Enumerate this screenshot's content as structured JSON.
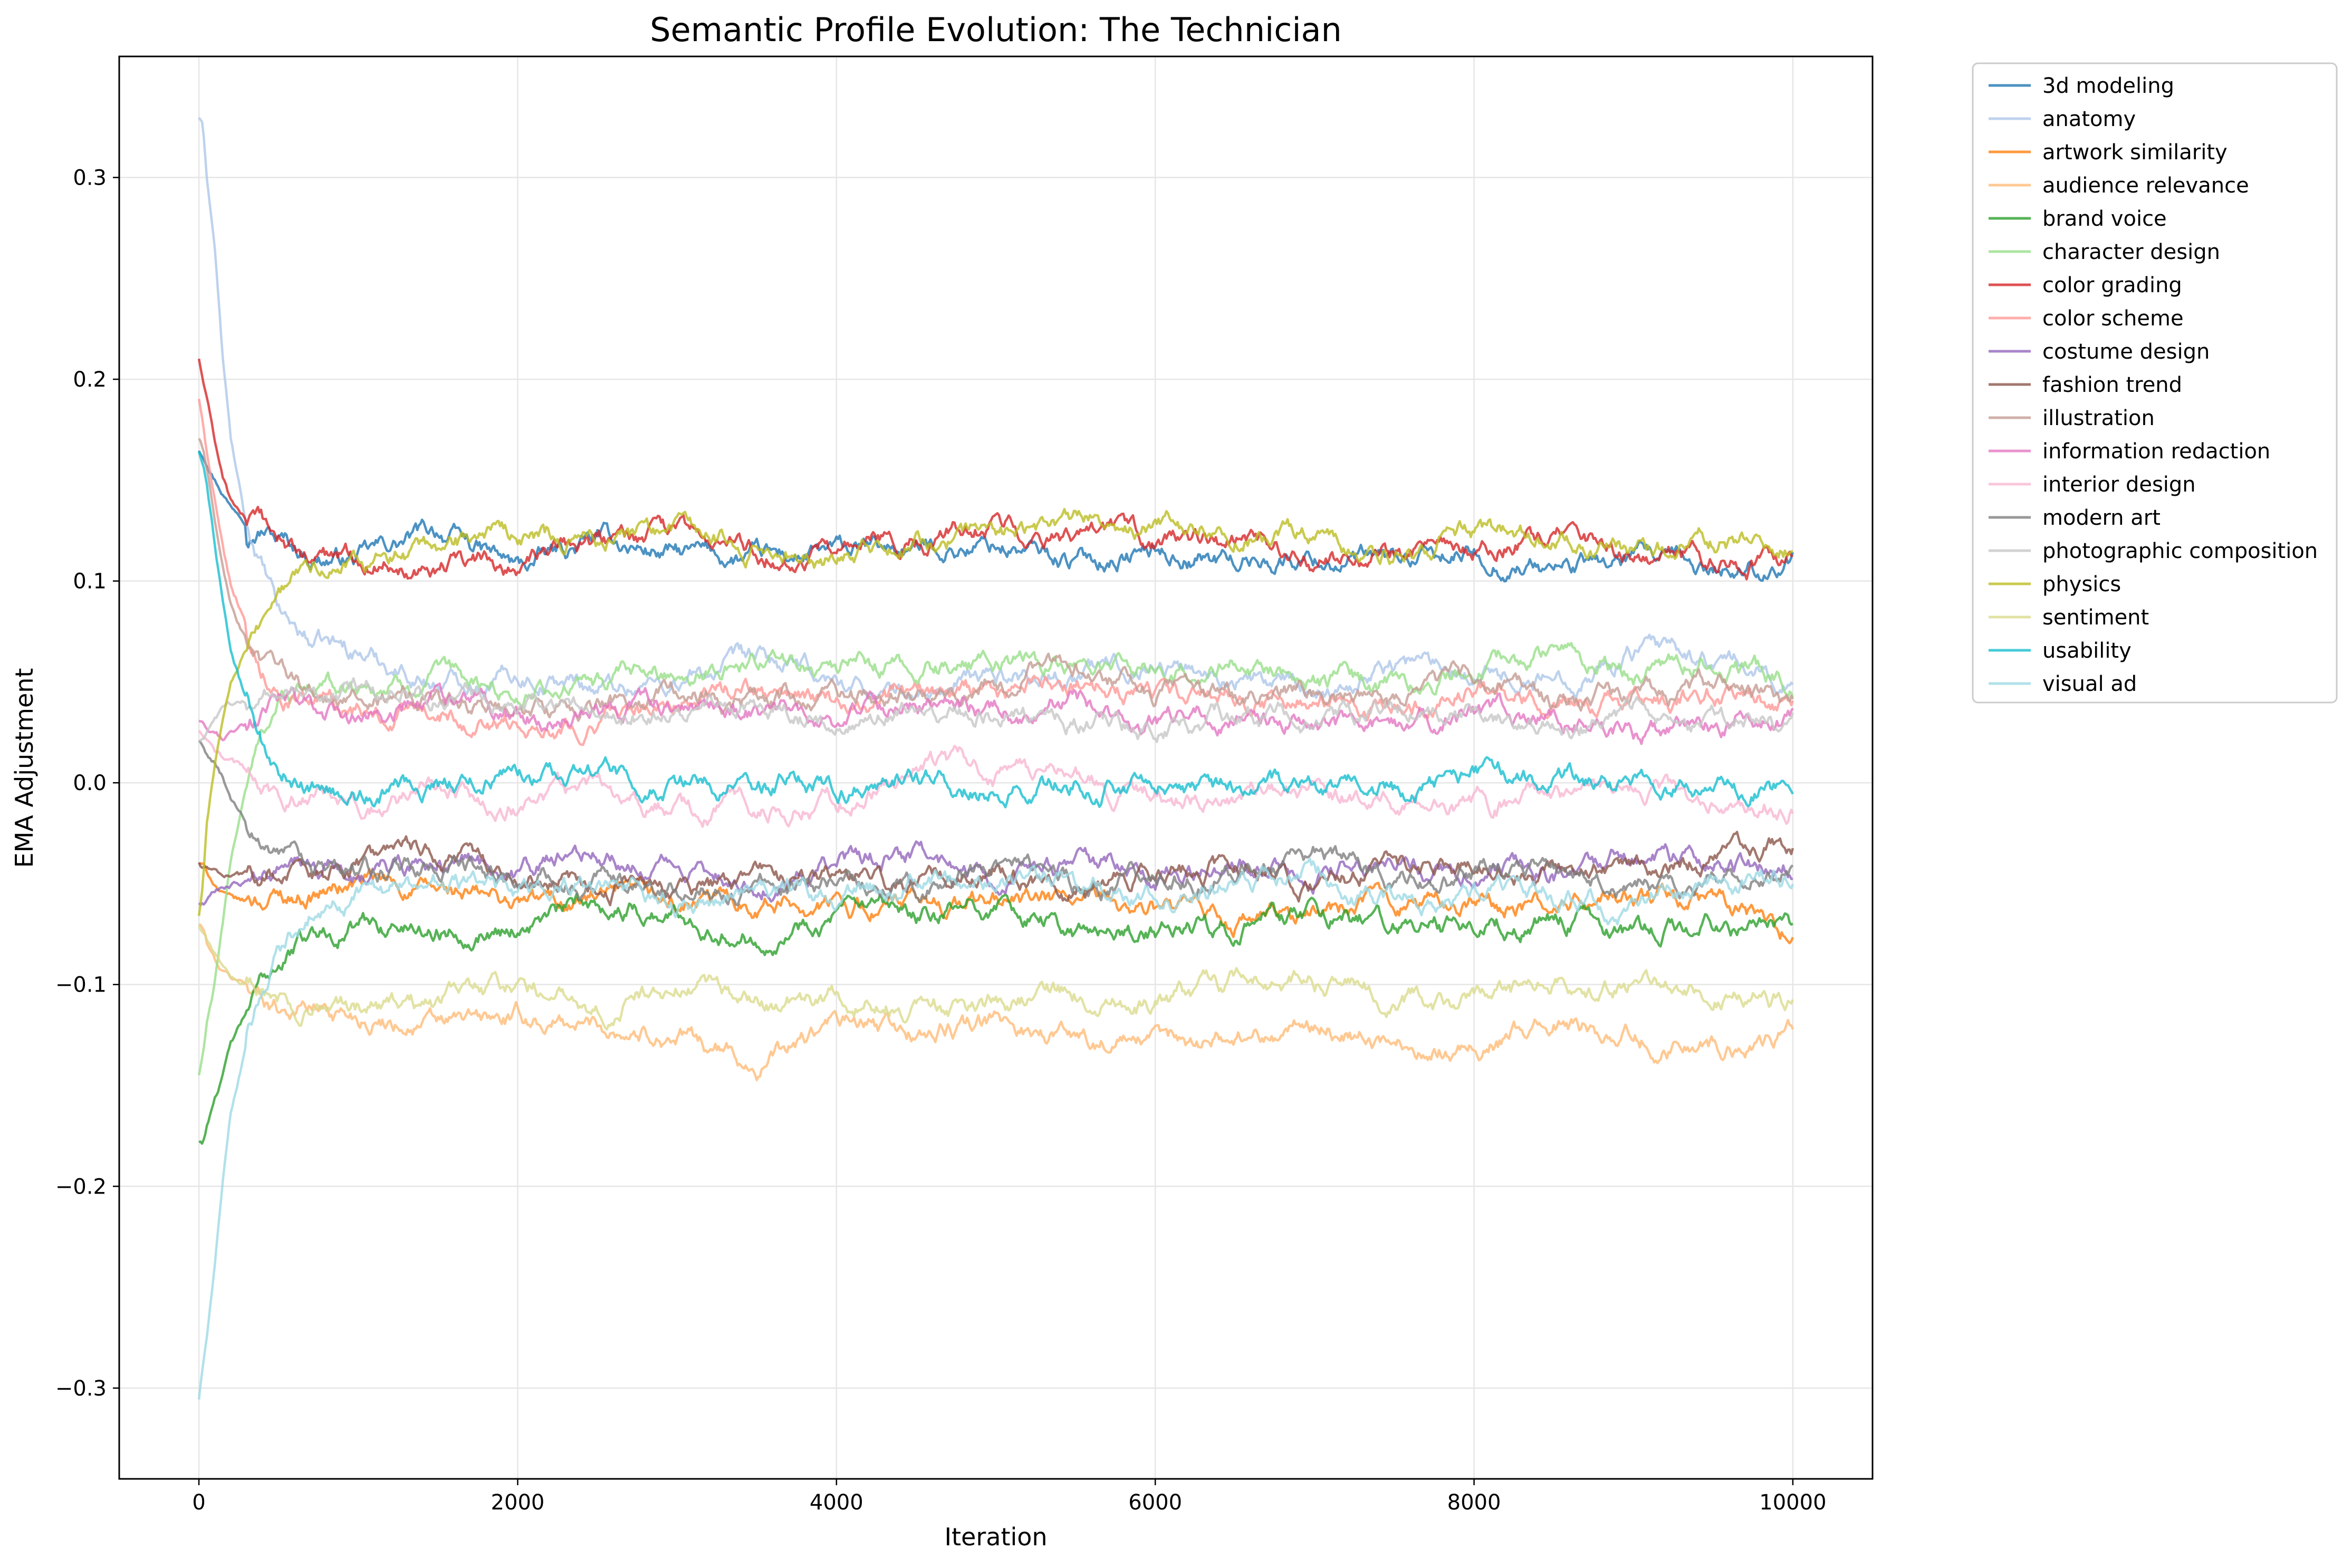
{
  "chart_data": {
    "type": "line",
    "title": "Semantic Profile Evolution: The Technician",
    "xlabel": "Iteration",
    "ylabel": "EMA Adjustment",
    "xlim": [
      -500,
      10500
    ],
    "ylim": [
      -0.345,
      0.36
    ],
    "xticks": [
      0,
      2000,
      4000,
      6000,
      8000,
      10000
    ],
    "xtick_labels": [
      "0",
      "2000",
      "4000",
      "6000",
      "8000",
      "10000"
    ],
    "yticks": [
      -0.3,
      -0.2,
      -0.1,
      0.0,
      0.1,
      0.2,
      0.3
    ],
    "ytick_labels": [
      "−0.3",
      "−0.2",
      "−0.1",
      "0.0",
      "0.1",
      "0.2",
      "0.3"
    ],
    "grid": true,
    "legend_position": "outside-right-top",
    "x": [
      0,
      25,
      50,
      100,
      150,
      200,
      300,
      400,
      500,
      700,
      1000,
      1500,
      2000,
      2500,
      3000,
      3500,
      4000,
      4500,
      5000,
      5500,
      6000,
      6500,
      7000,
      7500,
      8000,
      8500,
      9000,
      9500,
      10000
    ],
    "series": [
      {
        "name": "3d modeling",
        "color": "#1f77b4",
        "values": [
          0.165,
          0.163,
          0.16,
          0.152,
          0.145,
          0.138,
          0.132,
          0.13,
          0.122,
          0.113,
          0.111,
          0.125,
          0.106,
          0.12,
          0.113,
          0.11,
          0.113,
          0.116,
          0.118,
          0.11,
          0.115,
          0.11,
          0.112,
          0.108,
          0.112,
          0.106,
          0.11,
          0.104,
          0.11
        ]
      },
      {
        "name": "anatomy",
        "color": "#aec7e8",
        "values": [
          0.33,
          0.325,
          0.3,
          0.265,
          0.21,
          0.17,
          0.125,
          0.105,
          0.083,
          0.07,
          0.065,
          0.05,
          0.055,
          0.048,
          0.05,
          0.06,
          0.05,
          0.042,
          0.053,
          0.055,
          0.06,
          0.052,
          0.045,
          0.06,
          0.058,
          0.05,
          0.065,
          0.06,
          0.05
        ]
      },
      {
        "name": "artwork similarity",
        "color": "#ff7f0e",
        "values": [
          -0.04,
          -0.041,
          -0.045,
          -0.05,
          -0.055,
          -0.058,
          -0.06,
          -0.058,
          -0.056,
          -0.055,
          -0.05,
          -0.055,
          -0.06,
          -0.058,
          -0.062,
          -0.058,
          -0.06,
          -0.062,
          -0.058,
          -0.06,
          -0.063,
          -0.07,
          -0.065,
          -0.058,
          -0.06,
          -0.062,
          -0.058,
          -0.06,
          -0.075
        ]
      },
      {
        "name": "audience relevance",
        "color": "#ffbb78",
        "values": [
          -0.07,
          -0.072,
          -0.08,
          -0.088,
          -0.094,
          -0.097,
          -0.1,
          -0.105,
          -0.11,
          -0.11,
          -0.115,
          -0.12,
          -0.118,
          -0.12,
          -0.125,
          -0.14,
          -0.12,
          -0.125,
          -0.12,
          -0.125,
          -0.13,
          -0.125,
          -0.12,
          -0.13,
          -0.13,
          -0.12,
          -0.125,
          -0.13,
          -0.125
        ]
      },
      {
        "name": "brand voice",
        "color": "#2ca02c",
        "values": [
          -0.178,
          -0.178,
          -0.17,
          -0.155,
          -0.145,
          -0.13,
          -0.115,
          -0.1,
          -0.088,
          -0.075,
          -0.07,
          -0.072,
          -0.07,
          -0.06,
          -0.065,
          -0.075,
          -0.065,
          -0.07,
          -0.06,
          -0.075,
          -0.075,
          -0.07,
          -0.065,
          -0.07,
          -0.075,
          -0.065,
          -0.075,
          -0.07,
          -0.075
        ]
      },
      {
        "name": "character design",
        "color": "#98df8a",
        "values": [
          -0.145,
          -0.135,
          -0.12,
          -0.1,
          -0.07,
          -0.04,
          0.0,
          0.025,
          0.042,
          0.045,
          0.048,
          0.05,
          0.045,
          0.048,
          0.055,
          0.062,
          0.058,
          0.055,
          0.06,
          0.058,
          0.055,
          0.06,
          0.05,
          0.05,
          0.055,
          0.065,
          0.055,
          0.06,
          0.048
        ]
      },
      {
        "name": "color grading",
        "color": "#d62728",
        "values": [
          0.21,
          0.2,
          0.19,
          0.168,
          0.152,
          0.14,
          0.13,
          0.125,
          0.12,
          0.11,
          0.112,
          0.11,
          0.108,
          0.12,
          0.122,
          0.115,
          0.113,
          0.118,
          0.13,
          0.118,
          0.12,
          0.118,
          0.11,
          0.112,
          0.115,
          0.125,
          0.11,
          0.11,
          0.108
        ]
      },
      {
        "name": "color scheme",
        "color": "#ff9896",
        "values": [
          0.19,
          0.18,
          0.165,
          0.14,
          0.12,
          0.1,
          0.08,
          0.06,
          0.05,
          0.04,
          0.035,
          0.035,
          0.03,
          0.032,
          0.04,
          0.045,
          0.038,
          0.042,
          0.045,
          0.05,
          0.045,
          0.04,
          0.042,
          0.04,
          0.045,
          0.042,
          0.04,
          0.045,
          0.035
        ]
      },
      {
        "name": "costume design",
        "color": "#9467bd",
        "values": [
          -0.06,
          -0.06,
          -0.058,
          -0.055,
          -0.052,
          -0.05,
          -0.05,
          -0.048,
          -0.045,
          -0.042,
          -0.045,
          -0.04,
          -0.045,
          -0.035,
          -0.042,
          -0.048,
          -0.04,
          -0.035,
          -0.045,
          -0.04,
          -0.045,
          -0.04,
          -0.045,
          -0.04,
          -0.042,
          -0.045,
          -0.035,
          -0.04,
          -0.04
        ]
      },
      {
        "name": "fashion trend",
        "color": "#8c564b",
        "values": [
          -0.04,
          -0.042,
          -0.043,
          -0.045,
          -0.046,
          -0.045,
          -0.045,
          -0.045,
          -0.045,
          -0.045,
          -0.04,
          -0.035,
          -0.045,
          -0.05,
          -0.055,
          -0.048,
          -0.045,
          -0.05,
          -0.04,
          -0.055,
          -0.045,
          -0.04,
          -0.05,
          -0.045,
          -0.04,
          -0.045,
          -0.042,
          -0.038,
          -0.028
        ]
      },
      {
        "name": "illustration",
        "color": "#c49c94",
        "values": [
          0.17,
          0.165,
          0.155,
          0.13,
          0.11,
          0.09,
          0.07,
          0.058,
          0.05,
          0.045,
          0.04,
          0.04,
          0.035,
          0.04,
          0.045,
          0.04,
          0.042,
          0.045,
          0.05,
          0.06,
          0.045,
          0.04,
          0.045,
          0.04,
          0.055,
          0.04,
          0.042,
          0.045,
          0.042
        ]
      },
      {
        "name": "information redaction",
        "color": "#e377c2",
        "values": [
          0.03,
          0.028,
          0.025,
          0.022,
          0.02,
          0.025,
          0.03,
          0.035,
          0.04,
          0.035,
          0.03,
          0.04,
          0.03,
          0.035,
          0.04,
          0.035,
          0.03,
          0.04,
          0.035,
          0.04,
          0.03,
          0.035,
          0.025,
          0.03,
          0.03,
          0.035,
          0.025,
          0.03,
          0.035
        ]
      },
      {
        "name": "interior design",
        "color": "#f7b6d2",
        "values": [
          0.025,
          0.022,
          0.02,
          0.015,
          0.012,
          0.01,
          0.005,
          0.0,
          -0.005,
          -0.005,
          -0.01,
          -0.005,
          -0.01,
          -0.005,
          -0.012,
          -0.015,
          -0.008,
          0.01,
          0.005,
          0.0,
          -0.005,
          -0.008,
          -0.005,
          -0.01,
          -0.012,
          -0.008,
          -0.005,
          -0.01,
          -0.01
        ]
      },
      {
        "name": "modern art",
        "color": "#7f7f7f",
        "values": [
          0.02,
          0.018,
          0.015,
          0.01,
          0.002,
          -0.01,
          -0.02,
          -0.03,
          -0.038,
          -0.042,
          -0.045,
          -0.04,
          -0.045,
          -0.05,
          -0.055,
          -0.05,
          -0.048,
          -0.052,
          -0.04,
          -0.05,
          -0.048,
          -0.045,
          -0.035,
          -0.05,
          -0.045,
          -0.04,
          -0.05,
          -0.045,
          -0.04
        ]
      },
      {
        "name": "photographic composition",
        "color": "#c7c7c7",
        "values": [
          0.02,
          0.02,
          0.025,
          0.03,
          0.035,
          0.038,
          0.04,
          0.042,
          0.045,
          0.045,
          0.045,
          0.045,
          0.04,
          0.04,
          0.035,
          0.038,
          0.03,
          0.04,
          0.035,
          0.03,
          0.025,
          0.035,
          0.03,
          0.04,
          0.03,
          0.025,
          0.035,
          0.03,
          0.03
        ]
      },
      {
        "name": "physics",
        "color": "#bcbd22",
        "values": [
          -0.065,
          -0.05,
          -0.02,
          0.01,
          0.03,
          0.05,
          0.07,
          0.08,
          0.095,
          0.105,
          0.11,
          0.118,
          0.12,
          0.12,
          0.122,
          0.115,
          0.112,
          0.12,
          0.122,
          0.13,
          0.128,
          0.125,
          0.12,
          0.115,
          0.125,
          0.12,
          0.115,
          0.12,
          0.12
        ]
      },
      {
        "name": "sentiment",
        "color": "#dbdb8d",
        "values": [
          -0.07,
          -0.073,
          -0.078,
          -0.085,
          -0.092,
          -0.096,
          -0.1,
          -0.103,
          -0.105,
          -0.11,
          -0.112,
          -0.11,
          -0.1,
          -0.11,
          -0.1,
          -0.11,
          -0.105,
          -0.112,
          -0.11,
          -0.105,
          -0.11,
          -0.1,
          -0.1,
          -0.105,
          -0.11,
          -0.1,
          -0.1,
          -0.105,
          -0.11
        ]
      },
      {
        "name": "usability",
        "color": "#17becf",
        "values": [
          0.165,
          0.16,
          0.15,
          0.12,
          0.09,
          0.065,
          0.04,
          0.02,
          0.008,
          0.0,
          -0.005,
          0.0,
          0.005,
          0.005,
          0.0,
          0.0,
          0.0,
          0.005,
          -0.005,
          0.0,
          0.0,
          -0.005,
          0.0,
          -0.005,
          0.005,
          0.0,
          0.0,
          0.0,
          -0.005
        ]
      },
      {
        "name": "visual ad",
        "color": "#9edae5",
        "values": [
          -0.305,
          -0.29,
          -0.275,
          -0.24,
          -0.2,
          -0.165,
          -0.13,
          -0.105,
          -0.085,
          -0.065,
          -0.055,
          -0.05,
          -0.055,
          -0.05,
          -0.058,
          -0.055,
          -0.055,
          -0.05,
          -0.045,
          -0.05,
          -0.055,
          -0.05,
          -0.045,
          -0.06,
          -0.055,
          -0.055,
          -0.06,
          -0.05,
          -0.045
        ]
      }
    ]
  }
}
